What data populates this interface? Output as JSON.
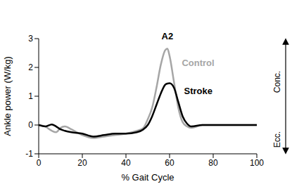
{
  "chart_data": {
    "type": "line",
    "x": [
      0,
      3,
      6,
      8,
      10,
      12,
      15,
      20,
      25,
      30,
      35,
      40,
      45,
      48,
      50,
      52,
      54,
      56,
      58,
      59,
      60,
      62,
      64,
      66,
      68,
      70,
      75,
      80,
      90,
      100
    ],
    "series": [
      {
        "name": "Control",
        "color": "#a6a6a6",
        "values": [
          0,
          -0.05,
          -0.2,
          -0.25,
          -0.1,
          -0.05,
          -0.15,
          -0.35,
          -0.45,
          -0.4,
          -0.35,
          -0.3,
          -0.2,
          -0.1,
          0.2,
          0.6,
          1.3,
          2.1,
          2.6,
          2.65,
          2.4,
          1.5,
          0.6,
          0.1,
          -0.05,
          -0.1,
          0,
          0,
          0,
          0
        ]
      },
      {
        "name": "Stroke",
        "color": "#000000",
        "values": [
          0,
          -0.05,
          0.02,
          -0.05,
          -0.15,
          -0.2,
          -0.25,
          -0.3,
          -0.4,
          -0.35,
          -0.3,
          -0.3,
          -0.25,
          -0.15,
          0,
          0.3,
          0.7,
          1.1,
          1.4,
          1.44,
          1.45,
          1.3,
          0.8,
          0.3,
          0.05,
          -0.05,
          0,
          0,
          0,
          0
        ]
      }
    ],
    "xlabel": "% Gait Cycle",
    "ylabel": "Ankle power (W/kg)",
    "xlim": [
      0,
      100
    ],
    "xticks": [
      0,
      20,
      40,
      60,
      80,
      100
    ],
    "ylim": [
      -1,
      3
    ],
    "yticks": [
      -1,
      0,
      1,
      2,
      3
    ],
    "annotations": [
      {
        "text": "A2",
        "x": 59,
        "y": 2.85
      }
    ],
    "side_labels": {
      "top": "Conc.",
      "bottom": "Ecc."
    },
    "grid": false
  }
}
